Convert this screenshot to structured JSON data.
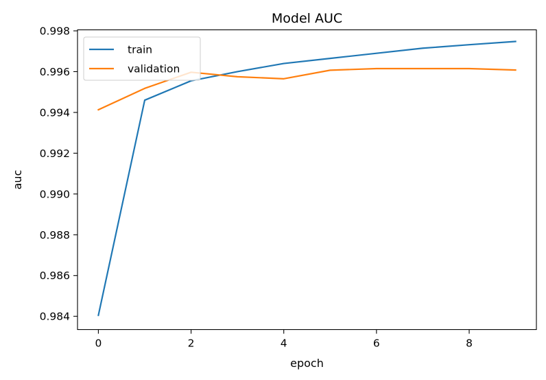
{
  "chart_data": {
    "type": "line",
    "title": "Model AUC",
    "xlabel": "epoch",
    "ylabel": "auc",
    "x": [
      0,
      1,
      2,
      3,
      4,
      5,
      6,
      7,
      8,
      9
    ],
    "series": [
      {
        "name": "train",
        "color": "#1f77b4",
        "values": [
          0.98405,
          0.9946,
          0.99555,
          0.996,
          0.9964,
          0.99665,
          0.9969,
          0.99715,
          0.99732,
          0.99748
        ]
      },
      {
        "name": "validation",
        "color": "#ff7f0e",
        "values": [
          0.99413,
          0.99518,
          0.99597,
          0.99575,
          0.99565,
          0.99607,
          0.99615,
          0.99615,
          0.99615,
          0.99608
        ]
      }
    ],
    "xlim": [
      -0.45,
      9.45
    ],
    "ylim": [
      0.98335,
      0.99805
    ],
    "xticks": [
      0,
      2,
      4,
      6,
      8
    ],
    "xtick_labels": [
      "0",
      "2",
      "4",
      "6",
      "8"
    ],
    "yticks": [
      0.984,
      0.986,
      0.988,
      0.99,
      0.992,
      0.994,
      0.996,
      0.998
    ],
    "ytick_labels": [
      "0.984",
      "0.986",
      "0.988",
      "0.990",
      "0.992",
      "0.994",
      "0.996",
      "0.998"
    ],
    "grid": false,
    "legend_position": "upper-left"
  }
}
